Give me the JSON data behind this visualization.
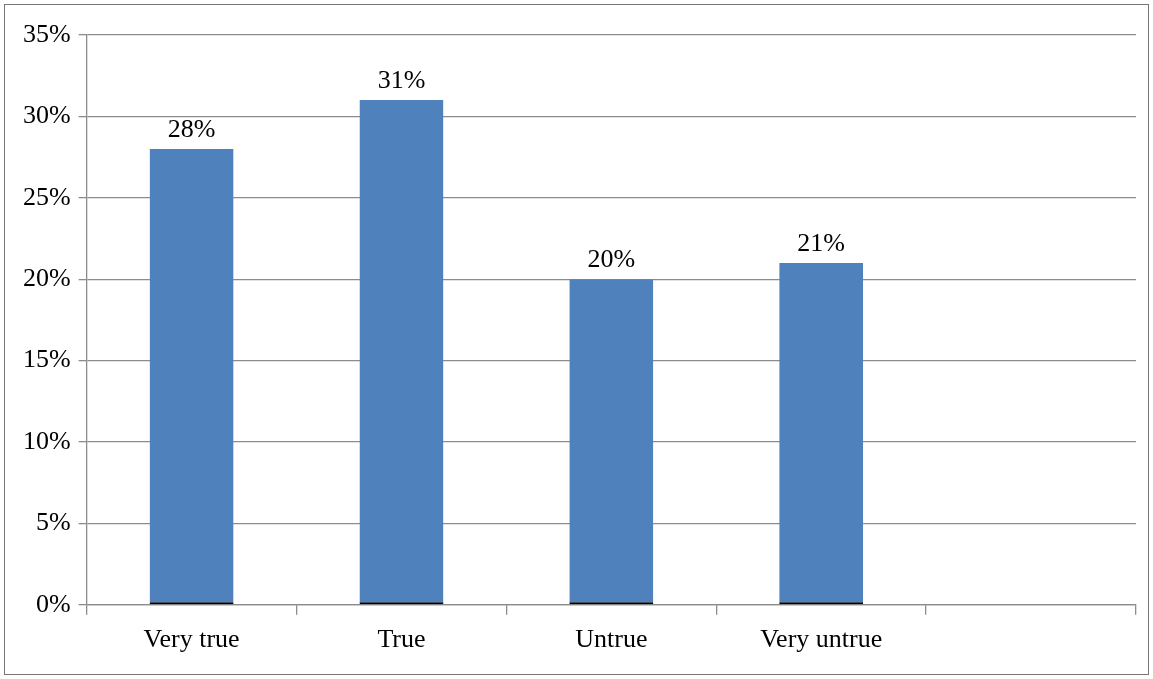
{
  "chart_data": {
    "type": "bar",
    "categories": [
      "Very true",
      "True",
      "Untrue",
      "Very untrue",
      null
    ],
    "values": [
      28,
      31,
      20,
      21,
      0
    ],
    "value_labels": [
      "28%",
      "31%",
      "20%",
      "21%",
      null
    ],
    "color": "#4f81bd",
    "ylim": [
      0,
      35
    ],
    "yticks": [
      {
        "value": 0,
        "label": "0%"
      },
      {
        "value": 5,
        "label": "5%"
      },
      {
        "value": 10,
        "label": "10%"
      },
      {
        "value": 15,
        "label": "15%"
      },
      {
        "value": 20,
        "label": "20%"
      },
      {
        "value": 25,
        "label": "25%"
      },
      {
        "value": 30,
        "label": "30%"
      },
      {
        "value": 35,
        "label": "35%"
      }
    ],
    "grid": "y",
    "legend": false
  }
}
